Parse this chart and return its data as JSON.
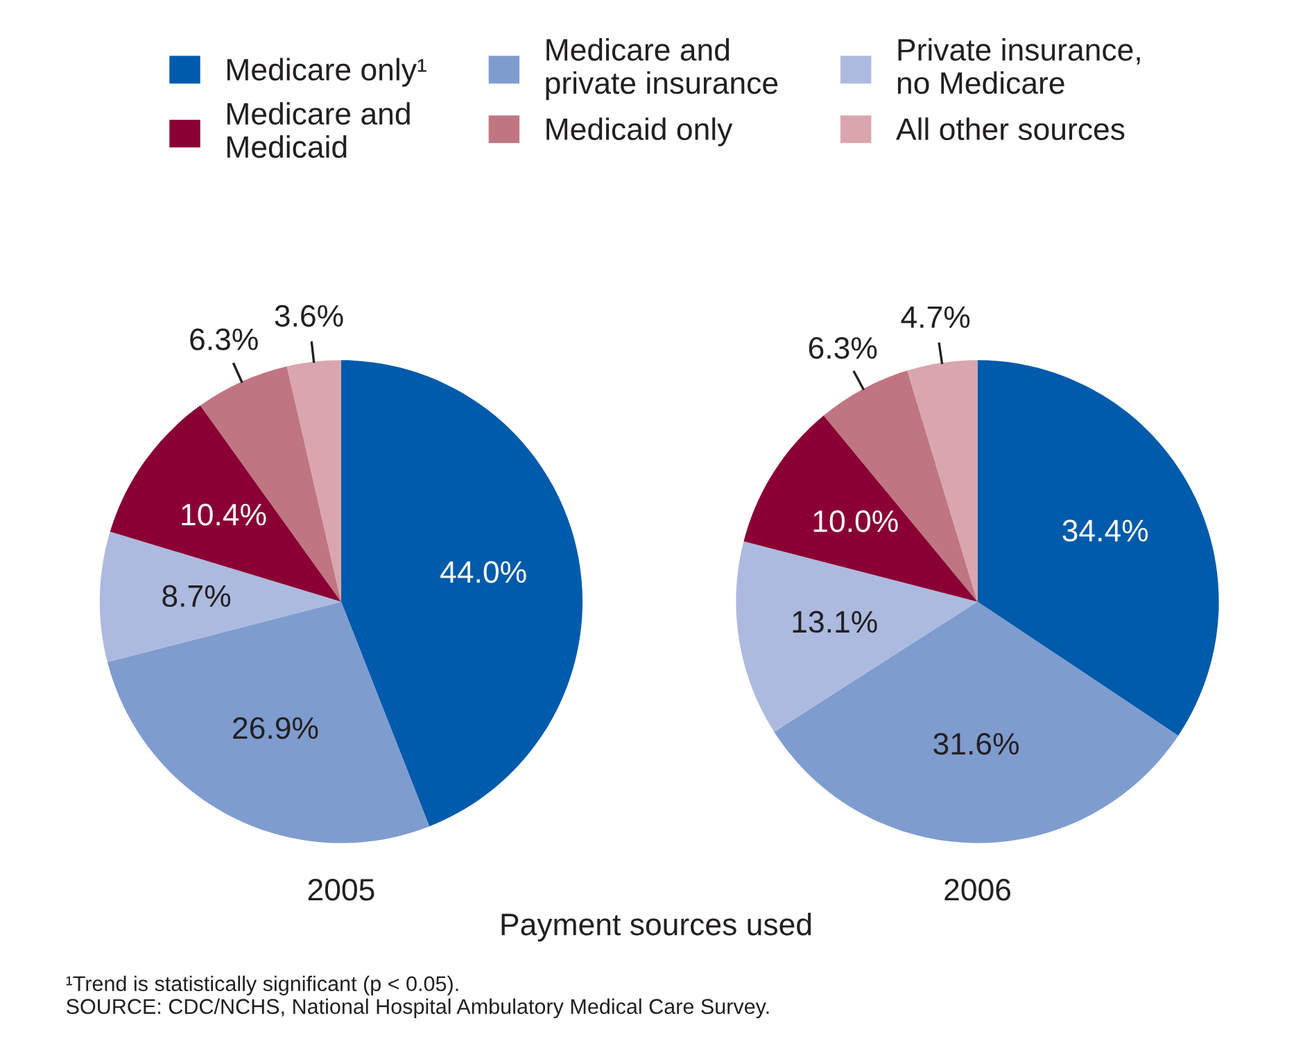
{
  "chart_data": [
    {
      "type": "pie",
      "title": "2005",
      "categories": [
        "Medicare only¹",
        "Medicare and\nprivate insurance",
        "Private insurance,\nno Medicare",
        "Medicare and\nMedicaid",
        "Medicaid only",
        "All other sources"
      ],
      "values": [
        44.0,
        26.9,
        8.7,
        10.4,
        6.3,
        3.6
      ],
      "value_labels": [
        "44.0%",
        "26.9%",
        "8.7%",
        "10.4%",
        "6.3%",
        "3.6%"
      ],
      "colors": [
        "#005bab",
        "#7f9ccf",
        "#adbadf",
        "#8a0034",
        "#c07582",
        "#d9a6ae"
      ],
      "legend": "top",
      "annotations": [
        "¹Trend is statistically significant (p < 0.05).\nSOURCE: CDC/NCHS, National Hospital Ambulatory Medical Care Survey."
      ]
    },
    {
      "type": "pie",
      "title": "2006",
      "xlabel": "Payment sources used",
      "categories": [
        null,
        null,
        null,
        null,
        null,
        null
      ],
      "values": [
        34.4,
        31.6,
        13.1,
        10.0,
        6.3,
        4.7
      ],
      "value_labels": [
        "34.4%",
        "31.6%",
        "13.1%",
        "10.0%",
        "6.3%",
        "4.7%"
      ],
      "colors": [
        "#005bab",
        "#7f9ccf",
        "#adbadf",
        "#8a0034",
        "#c07582",
        "#d9a6ae"
      ]
    }
  ]
}
